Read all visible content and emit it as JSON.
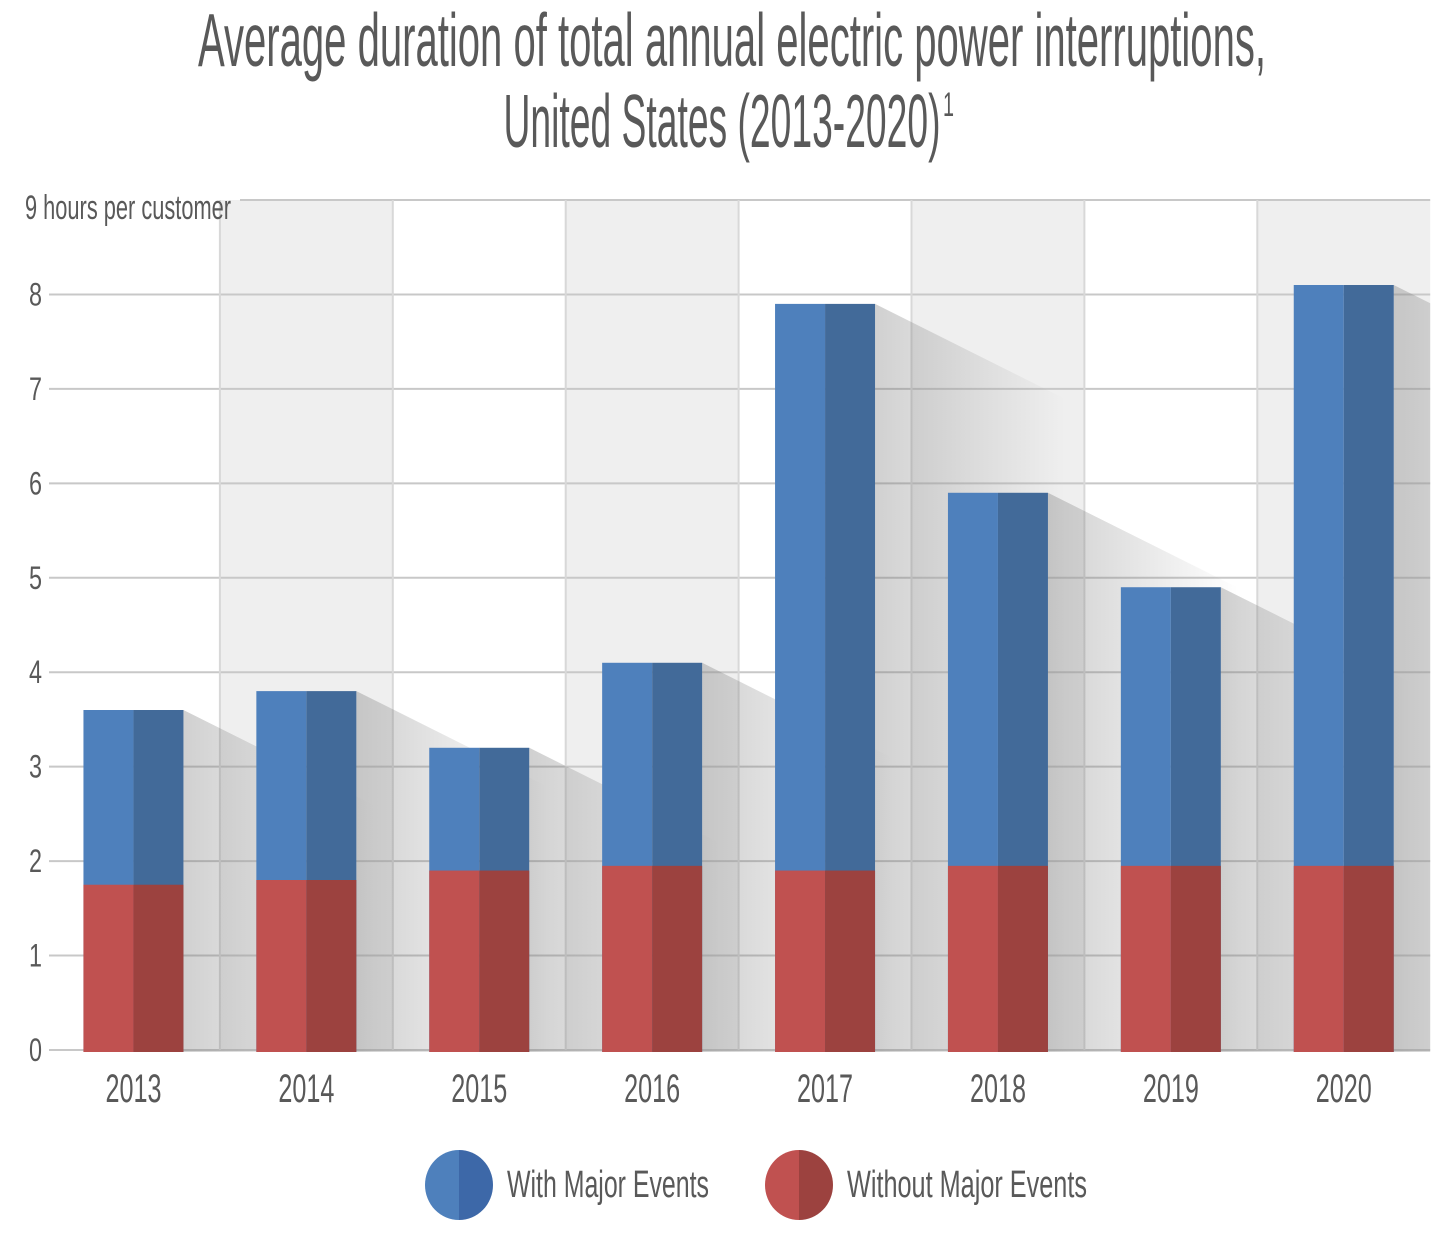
{
  "title": {
    "line1": "Average duration of total annual electric power interruptions,",
    "line2": "United States (2013-2020)",
    "superscript": "1"
  },
  "y_axis": {
    "unit_label": "9 hours per customer",
    "ticks": [
      "0",
      "1",
      "2",
      "3",
      "4",
      "5",
      "6",
      "7",
      "8"
    ],
    "max": 9
  },
  "chart_data": {
    "type": "bar",
    "title": "Average duration of total annual electric power interruptions, United States (2013-2020)",
    "categories": [
      "2013",
      "2014",
      "2015",
      "2016",
      "2017",
      "2018",
      "2019",
      "2020"
    ],
    "series": [
      {
        "name": "With Major Events",
        "values": [
          3.6,
          3.8,
          3.2,
          4.1,
          7.9,
          5.9,
          4.9,
          8.1
        ],
        "color_light": "#4e80bc",
        "color_dark": "#426a99"
      },
      {
        "name": "Without Major Events",
        "values": [
          1.75,
          1.8,
          1.9,
          1.95,
          1.9,
          1.95,
          1.95,
          1.95
        ],
        "color_light": "#c05150",
        "color_dark": "#9c423f"
      }
    ],
    "ylabel": "hours per customer",
    "ylim": [
      0,
      9
    ],
    "grid": true,
    "legend_position": "bottom",
    "bar_style": "overlay-stacked, two-tone vertical halves, long diagonal drop shadows, alternating column bands"
  },
  "legend": {
    "items": [
      {
        "label": "With Major Events",
        "color_light": "#4e80bc",
        "color_dark": "#3d68a8"
      },
      {
        "label": "Without Major Events",
        "color_light": "#c05150",
        "color_dark": "#9c423f"
      }
    ]
  },
  "colors": {
    "title_text": "#5a5a5a",
    "text": "#595959",
    "band_gray": "#efefef",
    "h_gridline": "#c8c8c8",
    "v_gridline": "#d8d8d8",
    "background": "#ffffff",
    "shadow": "#7a7a7a"
  }
}
